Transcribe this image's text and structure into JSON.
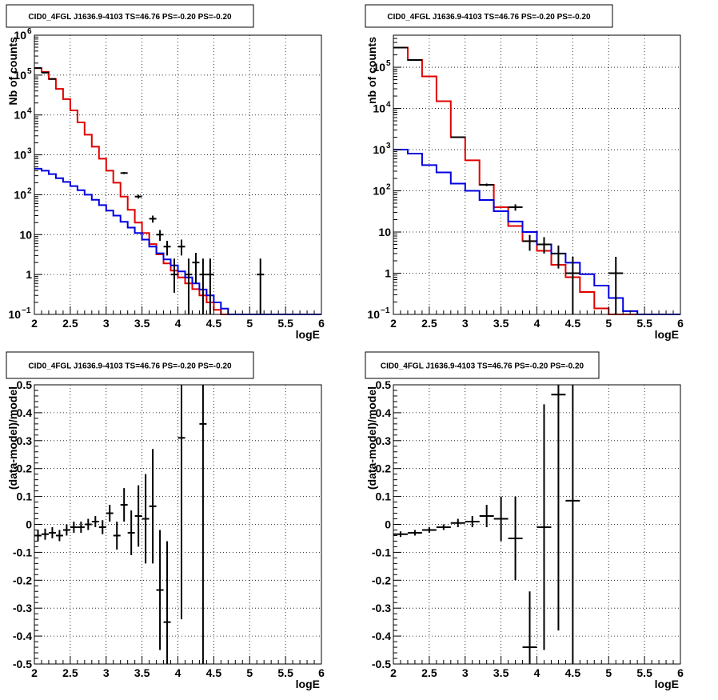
{
  "chart_data": [
    {
      "type": "histogram",
      "title": "CID0_4FGL J1636.9-4103 TS=46.76 PS=-0.20 PS=-0.20",
      "xlabel": "logE",
      "ylabel": "Nb of counts",
      "xlim": [
        2,
        6
      ],
      "ylim": [
        0.1,
        1000000
      ],
      "yscale": "log",
      "grid": true,
      "xticks": [
        "2",
        "2.5",
        "3",
        "3.5",
        "4",
        "4.5",
        "5",
        "5.5",
        "6"
      ],
      "yticks": [
        {
          "v": 0.1,
          "base": "10",
          "exp": "−1"
        },
        {
          "v": 1,
          "label": "1"
        },
        {
          "v": 10,
          "label": "10"
        },
        {
          "v": 100,
          "base": "10",
          "exp": "2"
        },
        {
          "v": 1000,
          "base": "10",
          "exp": "3"
        },
        {
          "v": 10000,
          "base": "10",
          "exp": "4"
        },
        {
          "v": 100000,
          "base": "10",
          "exp": "5"
        },
        {
          "v": 1000000,
          "base": "10",
          "exp": "6"
        }
      ],
      "series": [
        {
          "color": "#e00000",
          "edges": [
            2,
            2.1,
            2.2,
            2.3,
            2.4,
            2.5,
            2.6,
            2.7,
            2.8,
            2.9,
            3,
            3.1,
            3.2,
            3.3,
            3.4,
            3.5,
            3.6,
            3.7,
            3.8,
            3.9,
            4,
            4.1,
            4.2,
            4.3,
            4.4,
            4.5,
            4.6,
            4.7,
            4.8,
            4.9,
            5,
            5.1,
            5.2,
            5.3,
            5.4,
            5.5,
            5.6,
            5.7,
            5.8,
            5.9,
            6
          ],
          "values": [
            150000,
            120000,
            80000,
            45000,
            25000,
            13000,
            6500,
            3200,
            1600,
            800,
            400,
            200,
            90,
            42,
            20,
            11,
            5.8,
            3.2,
            1.9,
            1.25,
            0.85,
            0.6,
            0.43,
            0.3,
            0.2,
            0.13,
            0.1,
            0.1,
            0.1,
            0.1,
            0.1,
            0.1,
            0.1,
            0.1,
            0.1,
            0.1,
            0.1,
            0.1,
            0.1,
            0.1
          ]
        },
        {
          "color": "#0000e0",
          "edges": [
            2,
            2.1,
            2.2,
            2.3,
            2.4,
            2.5,
            2.6,
            2.7,
            2.8,
            2.9,
            3,
            3.1,
            3.2,
            3.3,
            3.4,
            3.5,
            3.6,
            3.7,
            3.8,
            3.9,
            4,
            4.1,
            4.2,
            4.3,
            4.4,
            4.5,
            4.6,
            4.7,
            4.8,
            4.9,
            5,
            5.1,
            5.2,
            5.3,
            5.4,
            5.5,
            5.6,
            5.7,
            5.8,
            5.9,
            6
          ],
          "values": [
            450,
            400,
            330,
            260,
            210,
            165,
            130,
            100,
            75,
            55,
            40,
            30,
            21,
            15,
            11,
            7.5,
            5,
            3.4,
            2.4,
            1.7,
            1.2,
            0.85,
            0.6,
            0.42,
            0.3,
            0.2,
            0.14,
            0.1,
            0.1,
            0.1,
            0.1,
            0.1,
            0.1,
            0.1,
            0.1,
            0.1,
            0.1,
            0.1,
            0.1,
            0.1
          ]
        }
      ],
      "points": [
        {
          "x": 2.05,
          "y": 150000,
          "lo": 149000,
          "hi": 151000
        },
        {
          "x": 2.15,
          "y": 115000,
          "lo": 114000,
          "hi": 116000
        },
        {
          "x": 2.25,
          "y": 80000,
          "lo": 79500,
          "hi": 80500
        },
        {
          "x": 3.25,
          "y": 350,
          "lo": 330,
          "hi": 370
        },
        {
          "x": 3.45,
          "y": 90,
          "lo": 80,
          "hi": 100
        },
        {
          "x": 3.65,
          "y": 25,
          "lo": 20,
          "hi": 30
        },
        {
          "x": 3.75,
          "y": 10,
          "lo": 7,
          "hi": 13
        },
        {
          "x": 3.85,
          "y": 5,
          "lo": 3,
          "hi": 7
        },
        {
          "x": 3.95,
          "y": 1,
          "lo": 0.35,
          "hi": 2.5
        },
        {
          "x": 4.05,
          "y": 5,
          "lo": 3,
          "hi": 7.5
        },
        {
          "x": 4.15,
          "y": 1,
          "lo": 0.1,
          "hi": 2.5
        },
        {
          "x": 4.25,
          "y": 2,
          "lo": 0.6,
          "hi": 3.5
        },
        {
          "x": 4.35,
          "y": 1,
          "lo": 0.1,
          "hi": 2.5
        },
        {
          "x": 4.45,
          "y": 1,
          "lo": 0.1,
          "hi": 2.5
        },
        {
          "x": 5.15,
          "y": 1,
          "lo": 0.1,
          "hi": 2.5
        }
      ]
    },
    {
      "type": "histogram",
      "title": "CID0_4FGL J1636.9-4103 TS=46.76 PS=-0.20 PS=-0.20",
      "xlabel": "logE",
      "ylabel": "nb of counts",
      "xlim": [
        2,
        6
      ],
      "ylim": [
        0.1,
        600000
      ],
      "yscale": "log",
      "grid": true,
      "xticks": [
        "2",
        "2.5",
        "3",
        "3.5",
        "4",
        "4.5",
        "5",
        "5.5",
        "6"
      ],
      "yticks": [
        {
          "v": 0.1,
          "base": "10",
          "exp": "−1"
        },
        {
          "v": 1,
          "label": "1"
        },
        {
          "v": 10,
          "label": "10"
        },
        {
          "v": 100,
          "base": "10",
          "exp": "2"
        },
        {
          "v": 1000,
          "base": "10",
          "exp": "3"
        },
        {
          "v": 10000,
          "base": "10",
          "exp": "4"
        },
        {
          "v": 100000,
          "base": "10",
          "exp": "5"
        }
      ],
      "series": [
        {
          "color": "#e00000",
          "edges": [
            2,
            2.2,
            2.4,
            2.6,
            2.8,
            3,
            3.2,
            3.4,
            3.6,
            3.8,
            4,
            4.2,
            4.4,
            4.6,
            4.8,
            5,
            5.2,
            5.4,
            5.6,
            5.8,
            6
          ],
          "values": [
            300000,
            150000,
            60000,
            15000,
            2000,
            550,
            140,
            40,
            14,
            6,
            3.5,
            1.6,
            0.8,
            0.35,
            0.14,
            0.1,
            0.1,
            0.1,
            0.1,
            0.1
          ]
        },
        {
          "color": "#0000e0",
          "edges": [
            2,
            2.2,
            2.4,
            2.6,
            2.8,
            3,
            3.2,
            3.4,
            3.6,
            3.8,
            4,
            4.2,
            4.4,
            4.6,
            4.8,
            5,
            5.2,
            5.4,
            5.6,
            5.8,
            6
          ],
          "values": [
            1000,
            800,
            420,
            280,
            150,
            100,
            60,
            32,
            18,
            10,
            5,
            3,
            1.8,
            0.95,
            0.5,
            0.25,
            0.12,
            0.1,
            0.1,
            0.1
          ]
        }
      ],
      "points": [
        {
          "x": 2.1,
          "y": 300000,
          "lo": 299000,
          "hi": 301000
        },
        {
          "x": 2.3,
          "y": 150000,
          "lo": 149500,
          "hi": 150500
        },
        {
          "x": 2.9,
          "y": 2000,
          "lo": 1950,
          "hi": 2050
        },
        {
          "x": 3.3,
          "y": 140,
          "lo": 130,
          "hi": 150
        },
        {
          "x": 3.7,
          "y": 40,
          "lo": 33,
          "hi": 47
        },
        {
          "x": 3.9,
          "y": 6,
          "lo": 3.5,
          "hi": 8.5
        },
        {
          "x": 4.1,
          "y": 5,
          "lo": 3,
          "hi": 7.5
        },
        {
          "x": 4.3,
          "y": 3,
          "lo": 1.3,
          "hi": 4.7
        },
        {
          "x": 4.5,
          "y": 1,
          "lo": 0.1,
          "hi": 2.5
        },
        {
          "x": 5.1,
          "y": 1,
          "lo": 0.1,
          "hi": 2.5
        }
      ]
    },
    {
      "type": "scatter",
      "title": "CID0_4FGL J1636.9-4103 TS=46.76 PS=-0.20 PS=-0.20",
      "xlabel": "logE",
      "ylabel": "(data-model)/model",
      "xlim": [
        2,
        6
      ],
      "ylim": [
        -0.5,
        0.5
      ],
      "grid": true,
      "xticks": [
        "2",
        "2.5",
        "3",
        "3.5",
        "4",
        "4.5",
        "5",
        "5.5",
        "6"
      ],
      "yticks": [
        "-0.5",
        "-0.4",
        "-0.3",
        "-0.2",
        "-0.1",
        "0",
        "0.1",
        "0.2",
        "0.3",
        "0.4",
        "0.5"
      ],
      "xerr": 0.05,
      "points": [
        {
          "x": 2.05,
          "y": -0.04,
          "lo": -0.06,
          "hi": -0.02
        },
        {
          "x": 2.15,
          "y": -0.035,
          "lo": -0.055,
          "hi": -0.015
        },
        {
          "x": 2.25,
          "y": -0.03,
          "lo": -0.05,
          "hi": -0.01
        },
        {
          "x": 2.35,
          "y": -0.04,
          "lo": -0.06,
          "hi": -0.02
        },
        {
          "x": 2.45,
          "y": -0.02,
          "lo": -0.04,
          "hi": 0
        },
        {
          "x": 2.55,
          "y": -0.01,
          "lo": -0.03,
          "hi": 0.01
        },
        {
          "x": 2.65,
          "y": -0.01,
          "lo": -0.03,
          "hi": 0.01
        },
        {
          "x": 2.75,
          "y": 0,
          "lo": -0.02,
          "hi": 0.02
        },
        {
          "x": 2.85,
          "y": 0.01,
          "lo": -0.01,
          "hi": 0.03
        },
        {
          "x": 2.95,
          "y": -0.01,
          "lo": -0.035,
          "hi": 0.015
        },
        {
          "x": 3.05,
          "y": 0.04,
          "lo": 0.01,
          "hi": 0.07
        },
        {
          "x": 3.15,
          "y": -0.04,
          "lo": -0.09,
          "hi": 0.01
        },
        {
          "x": 3.25,
          "y": 0.07,
          "lo": 0.01,
          "hi": 0.13
        },
        {
          "x": 3.35,
          "y": -0.03,
          "lo": -0.11,
          "hi": 0.05
        },
        {
          "x": 3.45,
          "y": 0.03,
          "lo": -0.08,
          "hi": 0.14
        },
        {
          "x": 3.55,
          "y": 0.02,
          "lo": -0.14,
          "hi": 0.18
        },
        {
          "x": 3.65,
          "y": 0.065,
          "lo": -0.14,
          "hi": 0.27
        },
        {
          "x": 3.75,
          "y": -0.235,
          "lo": -0.45,
          "hi": -0.02
        },
        {
          "x": 3.85,
          "y": -0.35,
          "lo": -0.5,
          "hi": -0.06
        },
        {
          "x": 4.05,
          "y": 0.31,
          "lo": -0.34,
          "hi": 0.5
        },
        {
          "x": 4.35,
          "y": 0.36,
          "lo": -0.5,
          "hi": 0.5
        }
      ]
    },
    {
      "type": "scatter",
      "title": "CID0_4FGL J1636.9-4103 TS=46.76 PS=-0.20 PS=-0.20",
      "xlabel": "logE",
      "ylabel": "(data-model)/model",
      "xlim": [
        2,
        6
      ],
      "ylim": [
        -0.5,
        0.5
      ],
      "grid": true,
      "xticks": [
        "2",
        "2.5",
        "3",
        "3.5",
        "4",
        "4.5",
        "5",
        "5.5",
        "6"
      ],
      "yticks": [
        "-0.5",
        "-0.4",
        "-0.3",
        "-0.2",
        "-0.1",
        "0",
        "0.1",
        "0.2",
        "0.3",
        "0.4",
        "0.5"
      ],
      "xerr": 0.1,
      "points": [
        {
          "x": 2.1,
          "y": -0.035,
          "lo": -0.045,
          "hi": -0.025
        },
        {
          "x": 2.3,
          "y": -0.03,
          "lo": -0.04,
          "hi": -0.02
        },
        {
          "x": 2.5,
          "y": -0.02,
          "lo": -0.03,
          "hi": -0.01
        },
        {
          "x": 2.7,
          "y": -0.01,
          "lo": -0.02,
          "hi": 0
        },
        {
          "x": 2.9,
          "y": 0.005,
          "lo": -0.01,
          "hi": 0.02
        },
        {
          "x": 3.1,
          "y": 0.01,
          "lo": -0.01,
          "hi": 0.03
        },
        {
          "x": 3.3,
          "y": 0.03,
          "lo": -0.01,
          "hi": 0.07
        },
        {
          "x": 3.5,
          "y": 0.02,
          "lo": -0.06,
          "hi": 0.1
        },
        {
          "x": 3.7,
          "y": -0.05,
          "lo": -0.2,
          "hi": 0.1
        },
        {
          "x": 3.9,
          "y": -0.44,
          "lo": -0.5,
          "hi": -0.24
        },
        {
          "x": 4.1,
          "y": -0.01,
          "lo": -0.45,
          "hi": 0.43
        },
        {
          "x": 4.3,
          "y": 0.465,
          "lo": -0.38,
          "hi": 0.5
        },
        {
          "x": 4.5,
          "y": 0.085,
          "lo": -0.5,
          "hi": 0.5
        }
      ]
    }
  ]
}
